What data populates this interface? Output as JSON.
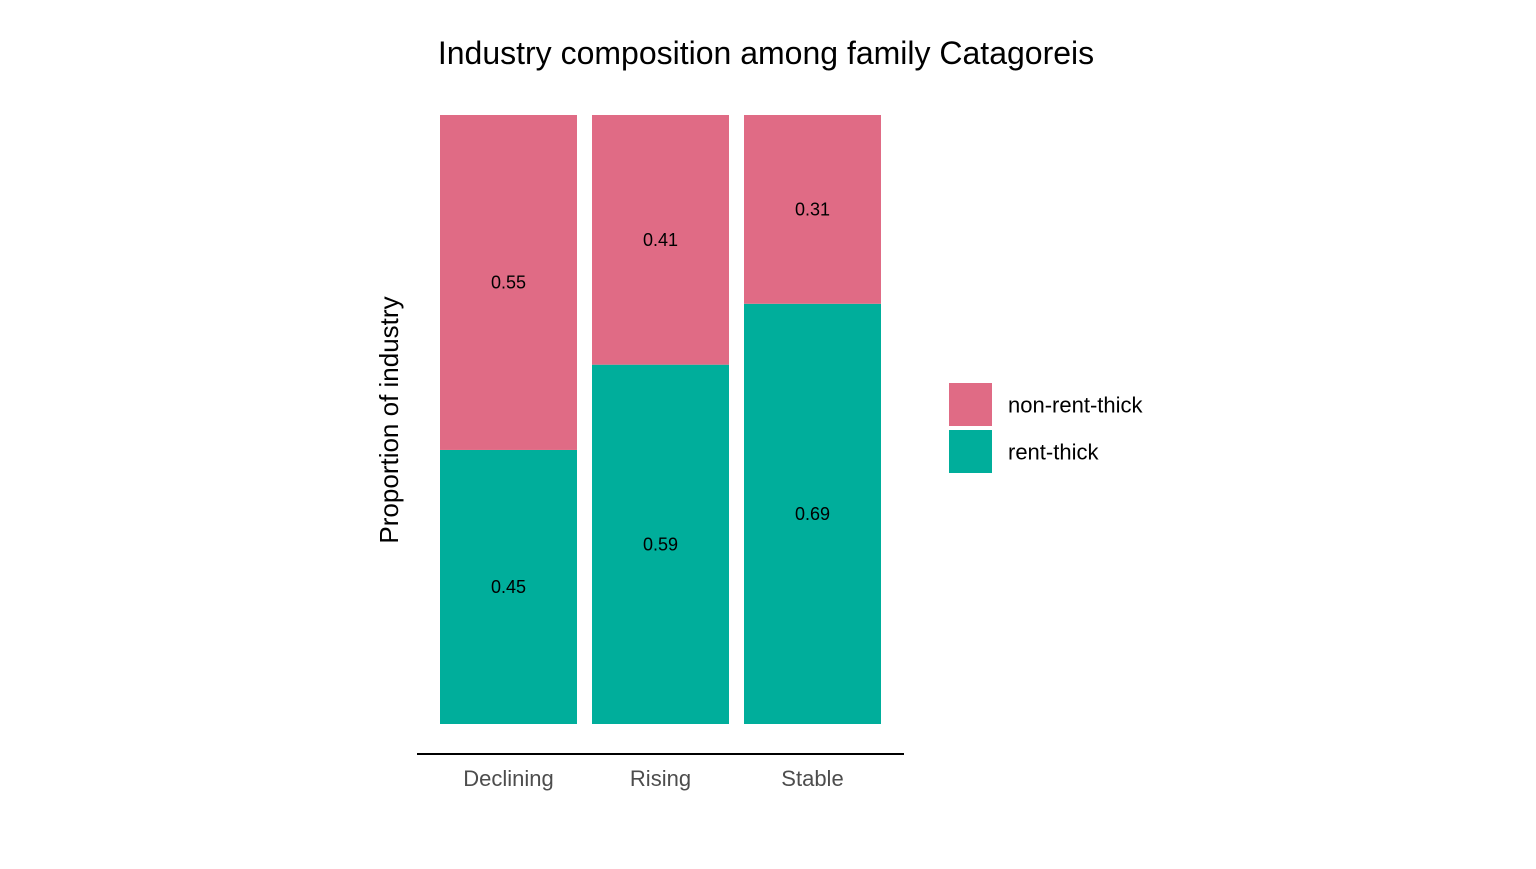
{
  "chart_data": {
    "type": "bar",
    "stacked": true,
    "normalized": true,
    "title": "Industry composition among family Catagoreis",
    "xlabel": "",
    "ylabel": "Proportion of industry",
    "ylim": [
      0,
      1
    ],
    "grid": false,
    "y_axis_ticks_shown": false,
    "legend_position": "right",
    "categories": [
      "Declining",
      "Rising",
      "Stable"
    ],
    "series": [
      {
        "name": "rent-thick",
        "color": "#00AE9B",
        "values": [
          0.45,
          0.59,
          0.69
        ],
        "labels": [
          "0.45",
          "0.59",
          "0.69"
        ]
      },
      {
        "name": "non-rent-thick",
        "color": "#E06B85",
        "values": [
          0.55,
          0.41,
          0.31
        ],
        "labels": [
          "0.55",
          "0.41",
          "0.31"
        ]
      }
    ],
    "legend": [
      "non-rent-thick",
      "rent-thick"
    ]
  }
}
